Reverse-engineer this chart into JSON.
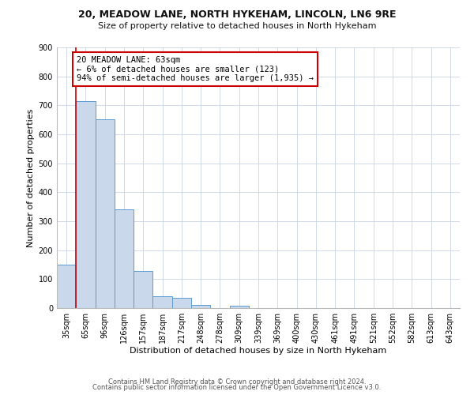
{
  "title1": "20, MEADOW LANE, NORTH HYKEHAM, LINCOLN, LN6 9RE",
  "title2": "Size of property relative to detached houses in North Hykeham",
  "xlabel": "Distribution of detached houses by size in North Hykeham",
  "ylabel": "Number of detached properties",
  "categories": [
    "35sqm",
    "65sqm",
    "96sqm",
    "126sqm",
    "157sqm",
    "187sqm",
    "217sqm",
    "248sqm",
    "278sqm",
    "309sqm",
    "339sqm",
    "369sqm",
    "400sqm",
    "430sqm",
    "461sqm",
    "491sqm",
    "521sqm",
    "552sqm",
    "582sqm",
    "613sqm",
    "643sqm"
  ],
  "values": [
    150,
    714,
    651,
    340,
    128,
    42,
    35,
    12,
    0,
    8,
    0,
    0,
    0,
    0,
    0,
    0,
    0,
    0,
    0,
    0,
    0
  ],
  "bar_color": "#c9d9eb",
  "bar_edge_color": "#5b9bd5",
  "property_line_x": 0.5,
  "annotation_text": "20 MEADOW LANE: 63sqm\n← 6% of detached houses are smaller (123)\n94% of semi-detached houses are larger (1,935) →",
  "annotation_box_color": "#ffffff",
  "annotation_box_edge_color": "#cc0000",
  "property_line_color": "#cc0000",
  "ylim": [
    0,
    900
  ],
  "yticks": [
    0,
    100,
    200,
    300,
    400,
    500,
    600,
    700,
    800,
    900
  ],
  "footer1": "Contains HM Land Registry data © Crown copyright and database right 2024.",
  "footer2": "Contains public sector information licensed under the Open Government Licence v3.0.",
  "bg_color": "#ffffff",
  "grid_color": "#c8d4e3",
  "title1_fontsize": 9,
  "title2_fontsize": 8,
  "xlabel_fontsize": 8,
  "ylabel_fontsize": 8,
  "footer_fontsize": 6,
  "annotation_fontsize": 7.5,
  "tick_fontsize": 7
}
